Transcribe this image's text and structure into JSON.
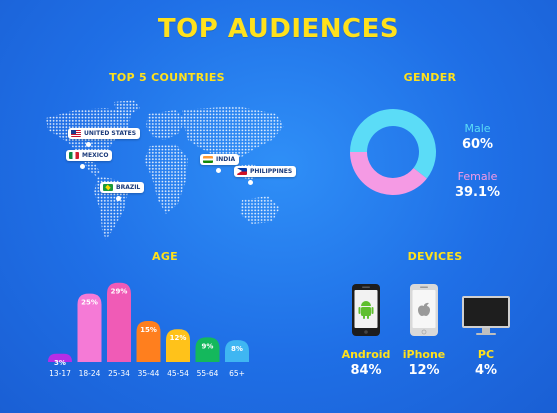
{
  "title": "TOP AUDIENCES",
  "countries": {
    "title": "TOP 5 COUNTRIES",
    "items": [
      "UNITED STATES",
      "MEXICO",
      "BRAZIL",
      "INDIA",
      "PHILIPPINES"
    ]
  },
  "gender": {
    "title": "GENDER",
    "male_label": "Male",
    "male_value": "60%",
    "female_label": "Female",
    "female_value": "39.1%"
  },
  "age": {
    "title": "AGE"
  },
  "devices": {
    "title": "DEVICES",
    "items": [
      {
        "label": "Android",
        "value": "84%"
      },
      {
        "label": "iPhone",
        "value": "12%"
      },
      {
        "label": "PC",
        "value": "4%"
      }
    ]
  },
  "colors": {
    "background": "#1f6fe6",
    "title": "#ffe11c",
    "male": "#5bdcf7",
    "female": "#f59ae4",
    "bars": [
      "#b62de6",
      "#f57ad6",
      "#f05bb6",
      "#ff7f1e",
      "#ffc21a",
      "#14b85c",
      "#3fb6f2"
    ]
  },
  "chart_data": [
    {
      "type": "bar",
      "title": "AGE",
      "categories": [
        "13-17",
        "18-24",
        "25-34",
        "35-44",
        "45-54",
        "55-64",
        "65+"
      ],
      "values": [
        3,
        25,
        29,
        15,
        12,
        9,
        8
      ],
      "value_labels": [
        "3%",
        "25%",
        "29%",
        "15%",
        "12%",
        "9%",
        "8%"
      ],
      "ylim": [
        0,
        30
      ]
    },
    {
      "type": "pie",
      "title": "GENDER",
      "categories": [
        "Male",
        "Female"
      ],
      "values": [
        60,
        39.1
      ]
    },
    {
      "type": "bar",
      "title": "DEVICES",
      "categories": [
        "Android",
        "iPhone",
        "PC"
      ],
      "values": [
        84,
        12,
        4
      ]
    }
  ]
}
